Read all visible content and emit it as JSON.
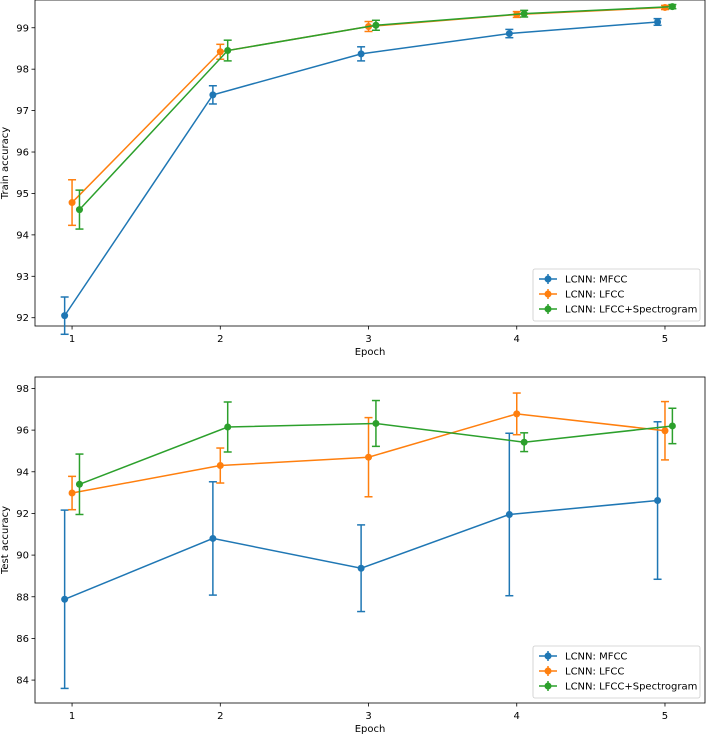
{
  "chart_data": [
    {
      "type": "line",
      "error_bars": true,
      "xlabel": "Epoch",
      "ylabel": "Train accuracy",
      "x": [
        1,
        2,
        3,
        4,
        5
      ],
      "xlim": [
        0.75,
        5.27
      ],
      "ylim": [
        91.8,
        99.67
      ],
      "yticks": [
        92,
        93,
        94,
        95,
        96,
        97,
        98,
        99
      ],
      "xticks": [
        1,
        2,
        3,
        4,
        5
      ],
      "grid": false,
      "legend_position": "bottom-right",
      "series": [
        {
          "name": "LCNN: MFCC",
          "color": "#1f77b4",
          "x_offset": -0.05,
          "values": [
            92.05,
            97.38,
            98.37,
            98.86,
            99.14
          ],
          "errors": [
            0.45,
            0.22,
            0.17,
            0.1,
            0.08
          ]
        },
        {
          "name": "LCNN: LFCC",
          "color": "#ff7f0e",
          "x_offset": 0.0,
          "values": [
            94.78,
            98.42,
            99.03,
            99.32,
            99.49
          ],
          "errors": [
            0.55,
            0.18,
            0.12,
            0.07,
            0.05
          ]
        },
        {
          "name": "LCNN: LFCC+Spectrogram",
          "color": "#2ca02c",
          "x_offset": 0.05,
          "values": [
            94.61,
            98.45,
            99.06,
            99.34,
            99.51
          ],
          "errors": [
            0.47,
            0.25,
            0.12,
            0.08,
            0.05
          ]
        }
      ]
    },
    {
      "type": "line",
      "error_bars": true,
      "xlabel": "Epoch",
      "ylabel": "Test accuracy",
      "x": [
        1,
        2,
        3,
        4,
        5
      ],
      "xlim": [
        0.75,
        5.27
      ],
      "ylim": [
        82.9,
        98.55
      ],
      "yticks": [
        84,
        86,
        88,
        90,
        92,
        94,
        96,
        98
      ],
      "xticks": [
        1,
        2,
        3,
        4,
        5
      ],
      "grid": false,
      "legend_position": "bottom-right",
      "series": [
        {
          "name": "LCNN: MFCC",
          "color": "#1f77b4",
          "x_offset": -0.05,
          "values": [
            87.88,
            90.8,
            89.37,
            91.95,
            92.62
          ],
          "errors": [
            4.28,
            2.72,
            2.08,
            3.9,
            3.78
          ]
        },
        {
          "name": "LCNN: LFCC",
          "color": "#ff7f0e",
          "x_offset": 0.0,
          "values": [
            92.98,
            94.3,
            94.7,
            96.78,
            95.97
          ],
          "errors": [
            0.8,
            0.84,
            1.9,
            1.0,
            1.4
          ]
        },
        {
          "name": "LCNN: LFCC+Spectrogram",
          "color": "#2ca02c",
          "x_offset": 0.05,
          "values": [
            93.4,
            96.15,
            96.32,
            95.42,
            96.2
          ],
          "errors": [
            1.45,
            1.2,
            1.1,
            0.45,
            0.85
          ]
        }
      ]
    }
  ]
}
